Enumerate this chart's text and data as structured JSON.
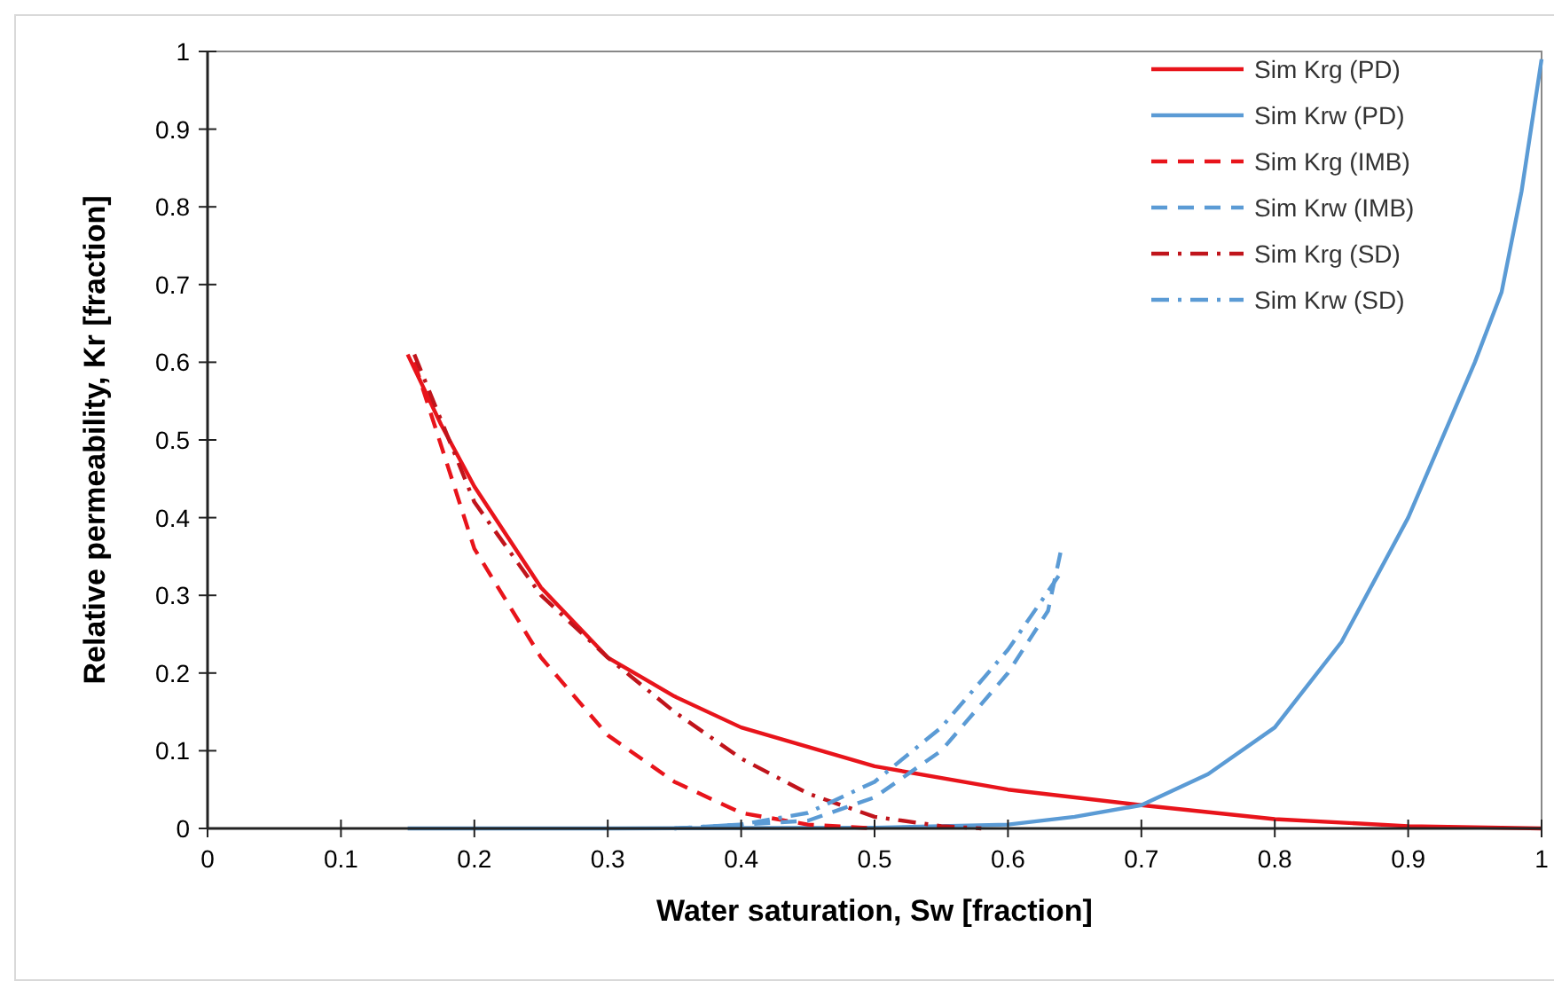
{
  "chart_data": {
    "type": "line",
    "xlabel": "Water saturation, Sw [fraction]",
    "ylabel": "Relative permeability, Kr [fraction]",
    "xlim": [
      0,
      1
    ],
    "ylim": [
      0,
      1
    ],
    "xticks": [
      0,
      0.1,
      0.2,
      0.3,
      0.4,
      0.5,
      0.6,
      0.7,
      0.8,
      0.9,
      1
    ],
    "yticks": [
      0,
      0.1,
      0.2,
      0.3,
      0.4,
      0.5,
      0.6,
      0.7,
      0.8,
      0.9,
      1
    ],
    "grid": false,
    "legend": "top right",
    "marker": "none",
    "series": [
      {
        "name": "Sim Krg (PD)",
        "color": "#e8141b",
        "line_style": "solid",
        "x": [
          0.15,
          0.175,
          0.2,
          0.25,
          0.3,
          0.35,
          0.4,
          0.5,
          0.6,
          0.7,
          0.8,
          0.9,
          1
        ],
        "values": [
          0.61,
          0.52,
          0.44,
          0.31,
          0.22,
          0.17,
          0.13,
          0.08,
          0.05,
          0.03,
          0.012,
          0.003,
          0
        ]
      },
      {
        "name": "Sim Krw (PD)",
        "color": "#5b9bd5",
        "line_style": "solid",
        "x": [
          0.15,
          0.3,
          0.5,
          0.6,
          0.65,
          0.7,
          0.75,
          0.8,
          0.85,
          0.9,
          0.95,
          0.97,
          0.985,
          1
        ],
        "values": [
          0,
          0,
          0.001,
          0.005,
          0.015,
          0.03,
          0.07,
          0.13,
          0.24,
          0.4,
          0.6,
          0.69,
          0.82,
          0.99
        ]
      },
      {
        "name": "Sim Krg (IMB)",
        "color": "#e8141b",
        "line_style": "dashed",
        "x": [
          0.155,
          0.2,
          0.25,
          0.3,
          0.35,
          0.4,
          0.45,
          0.5
        ],
        "values": [
          0.6,
          0.36,
          0.22,
          0.12,
          0.06,
          0.02,
          0.005,
          0
        ]
      },
      {
        "name": "Sim Krw (IMB)",
        "color": "#5b9bd5",
        "line_style": "dashed",
        "x": [
          0.35,
          0.45,
          0.5,
          0.55,
          0.6,
          0.63,
          0.64
        ],
        "values": [
          0,
          0.01,
          0.04,
          0.1,
          0.2,
          0.28,
          0.36
        ]
      },
      {
        "name": "Sim Krg (SD)",
        "color": "#c0141b",
        "line_style": "dashdot",
        "x": [
          0.155,
          0.2,
          0.25,
          0.3,
          0.35,
          0.4,
          0.45,
          0.5,
          0.55,
          0.58
        ],
        "values": [
          0.61,
          0.42,
          0.3,
          0.22,
          0.15,
          0.09,
          0.045,
          0.015,
          0.003,
          0
        ]
      },
      {
        "name": "Sim Krw (SD)",
        "color": "#5b9bd5",
        "line_style": "dashdot",
        "x": [
          0.35,
          0.4,
          0.45,
          0.5,
          0.55,
          0.6,
          0.64
        ],
        "values": [
          0,
          0.005,
          0.02,
          0.06,
          0.13,
          0.23,
          0.33
        ]
      }
    ]
  }
}
